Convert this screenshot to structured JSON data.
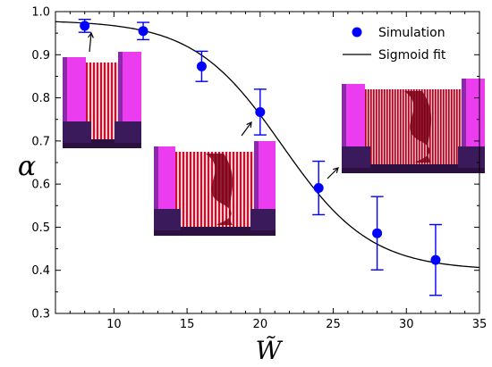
{
  "chart_data": {
    "type": "scatter",
    "title": "",
    "xlabel": "W̃",
    "ylabel": "α",
    "xlim": [
      6,
      35
    ],
    "ylim": [
      0.3,
      1.0
    ],
    "xticks": [
      10,
      15,
      20,
      25,
      30,
      35
    ],
    "yticks": [
      0.3,
      0.4,
      0.5,
      0.6,
      0.7,
      0.8,
      0.9,
      1.0
    ],
    "tick_labels_y": [
      "0.3",
      "0.4",
      "0.5",
      "0.6",
      "0.7",
      "0.8",
      "0.9",
      "1.0"
    ],
    "tick_labels_x": [
      "10",
      "15",
      "20",
      "25",
      "30",
      "35"
    ],
    "grid": false,
    "legend_position": "top-right",
    "colors": {
      "points": "#0000ff",
      "fit": "#000000",
      "wall": "#e040e8",
      "wall_dark": "#3a1a5a",
      "fibers": "#d01830"
    },
    "series": [
      {
        "name": "Simulation",
        "kind": "errorbar",
        "x": [
          8,
          12,
          16,
          20,
          24,
          28,
          32
        ],
        "y": [
          0.967,
          0.955,
          0.873,
          0.767,
          0.591,
          0.486,
          0.424
        ],
        "yerr": [
          0.015,
          0.02,
          0.035,
          0.053,
          0.062,
          0.085,
          0.082
        ]
      },
      {
        "name": "Sigmoid fit",
        "kind": "line",
        "function": "sigmoid",
        "params": {
          "low": 0.4,
          "high": 0.98,
          "x0": 21.5,
          "k": 0.33
        }
      }
    ],
    "insets": [
      {
        "name": "inset-narrow-channel",
        "points_to_x": 8,
        "points_to_y": 0.967
      },
      {
        "name": "inset-medium-channel",
        "points_to_x": 20,
        "points_to_y": 0.767
      },
      {
        "name": "inset-wide-channel",
        "points_to_x": 24,
        "points_to_y": 0.591
      }
    ]
  }
}
